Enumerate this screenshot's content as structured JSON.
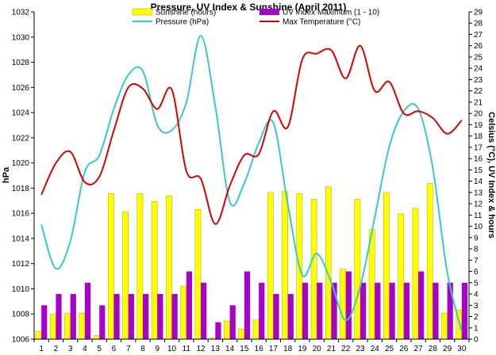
{
  "chart_data": {
    "type": "bar",
    "title": "Pressure, UV Index & Sunshine (April 2011)",
    "ylabel_left": "hPa",
    "ylabel_right": "Celsius (°C), UV Index & hours",
    "categories": [
      "1",
      "2",
      "3",
      "4",
      "5",
      "6",
      "7",
      "8",
      "9",
      "10",
      "11",
      "12",
      "13",
      "14",
      "15",
      "16",
      "17",
      "18",
      "19",
      "20",
      "21",
      "22",
      "23",
      "24",
      "25",
      "26",
      "27",
      "28",
      "29",
      "30"
    ],
    "ylim_left": [
      1006,
      1032
    ],
    "ylim_right": [
      0,
      29
    ],
    "yticks_left": [
      1006,
      1008,
      1010,
      1012,
      1014,
      1016,
      1018,
      1020,
      1022,
      1024,
      1026,
      1028,
      1030,
      1032
    ],
    "yticks_right": [
      0,
      1,
      2,
      3,
      4,
      5,
      6,
      7,
      8,
      9,
      10,
      11,
      12,
      13,
      14,
      15,
      16,
      17,
      18,
      19,
      20,
      21,
      22,
      23,
      24,
      25,
      26,
      27,
      28,
      29
    ],
    "grid": false,
    "legend_position": "top",
    "colors": {
      "sunshine": "#ffff00",
      "sunshine_edge": "#b8a000",
      "uv": "#aa00cc",
      "pressure": "#33cccc",
      "max_temperature": "#dd0000",
      "axis": "#000000"
    },
    "series": [
      {
        "name": "Sunshine (hours)",
        "kind": "bar",
        "axis": "right",
        "values": [
          0.7,
          2.2,
          2.3,
          2.3,
          0.3,
          12.9,
          11.3,
          12.9,
          12.2,
          12.7,
          4.7,
          11.5,
          0.1,
          1.6,
          0.9,
          1.7,
          13.0,
          13.1,
          12.9,
          12.4,
          13.5,
          6.2,
          12.4,
          9.7,
          13.0,
          11.1,
          11.6,
          13.8,
          2.3,
          2.6
        ]
      },
      {
        "name": "UV Index Maximum (1 - 10)",
        "kind": "bar",
        "axis": "right",
        "values": [
          3,
          4,
          4,
          5,
          3,
          4,
          4,
          4,
          4,
          4,
          6,
          5,
          1.5,
          3,
          6,
          5,
          4,
          4,
          5,
          5,
          5,
          6,
          5,
          5,
          5,
          5,
          6,
          5,
          5,
          5
        ]
      },
      {
        "name": "Pressure (hPa)",
        "kind": "line",
        "axis": "left",
        "values": [
          1015.1,
          1011.6,
          1013.8,
          1019.3,
          1020.6,
          1024.3,
          1027.0,
          1027.3,
          1023.0,
          1022.6,
          1024.8,
          1030.1,
          1024.5,
          1016.9,
          1018.4,
          1021.6,
          1023.2,
          1016.7,
          1011.1,
          1012.8,
          1010.5,
          1007.5,
          1010.2,
          1015.7,
          1021.3,
          1024.1,
          1024.3,
          1019.6,
          1011.3,
          1006.6
        ]
      },
      {
        "name": "Max Temperature (°C)",
        "kind": "line",
        "axis": "right",
        "values": [
          12.8,
          15.6,
          16.6,
          13.9,
          14.4,
          18.5,
          22.3,
          22.2,
          20.4,
          22.1,
          14.9,
          14.2,
          10.2,
          13.6,
          16.3,
          16.4,
          20.2,
          18.8,
          24.8,
          25.3,
          25.6,
          23.1,
          26.0,
          22.0,
          22.8,
          20.0,
          20.2,
          19.6,
          18.2,
          19.4
        ]
      }
    ]
  }
}
